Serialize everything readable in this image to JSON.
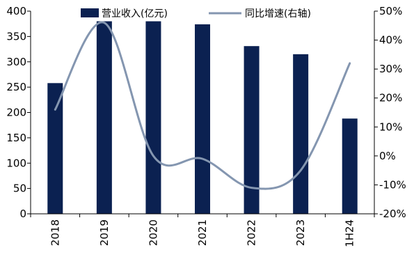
{
  "chart_data": {
    "type": "bar",
    "categories": [
      "2018",
      "2019",
      "2020",
      "2021",
      "2022",
      "2023",
      "1H24"
    ],
    "series": [
      {
        "name": "营业收入(亿元)",
        "type": "bar",
        "axis": "left",
        "color": "#0b2151",
        "values": [
          258,
          380,
          380,
          374,
          331,
          315,
          188
        ]
      },
      {
        "name": "同比增速(右轴)",
        "type": "line",
        "axis": "right",
        "color": "#8496b0",
        "values": [
          0.16,
          0.46,
          0.0,
          -0.01,
          -0.11,
          -0.05,
          0.32
        ]
      }
    ],
    "left_axis": {
      "ylim": [
        0,
        400
      ],
      "ticks": [
        "0",
        "50",
        "100",
        "150",
        "200",
        "250",
        "300",
        "350",
        "400"
      ]
    },
    "right_axis": {
      "ylim": [
        -0.2,
        0.5
      ],
      "ticks": [
        "-20%",
        "-10%",
        "0%",
        "10%",
        "20%",
        "30%",
        "40%",
        "50%"
      ]
    },
    "legend": "top-center",
    "grid": false
  }
}
